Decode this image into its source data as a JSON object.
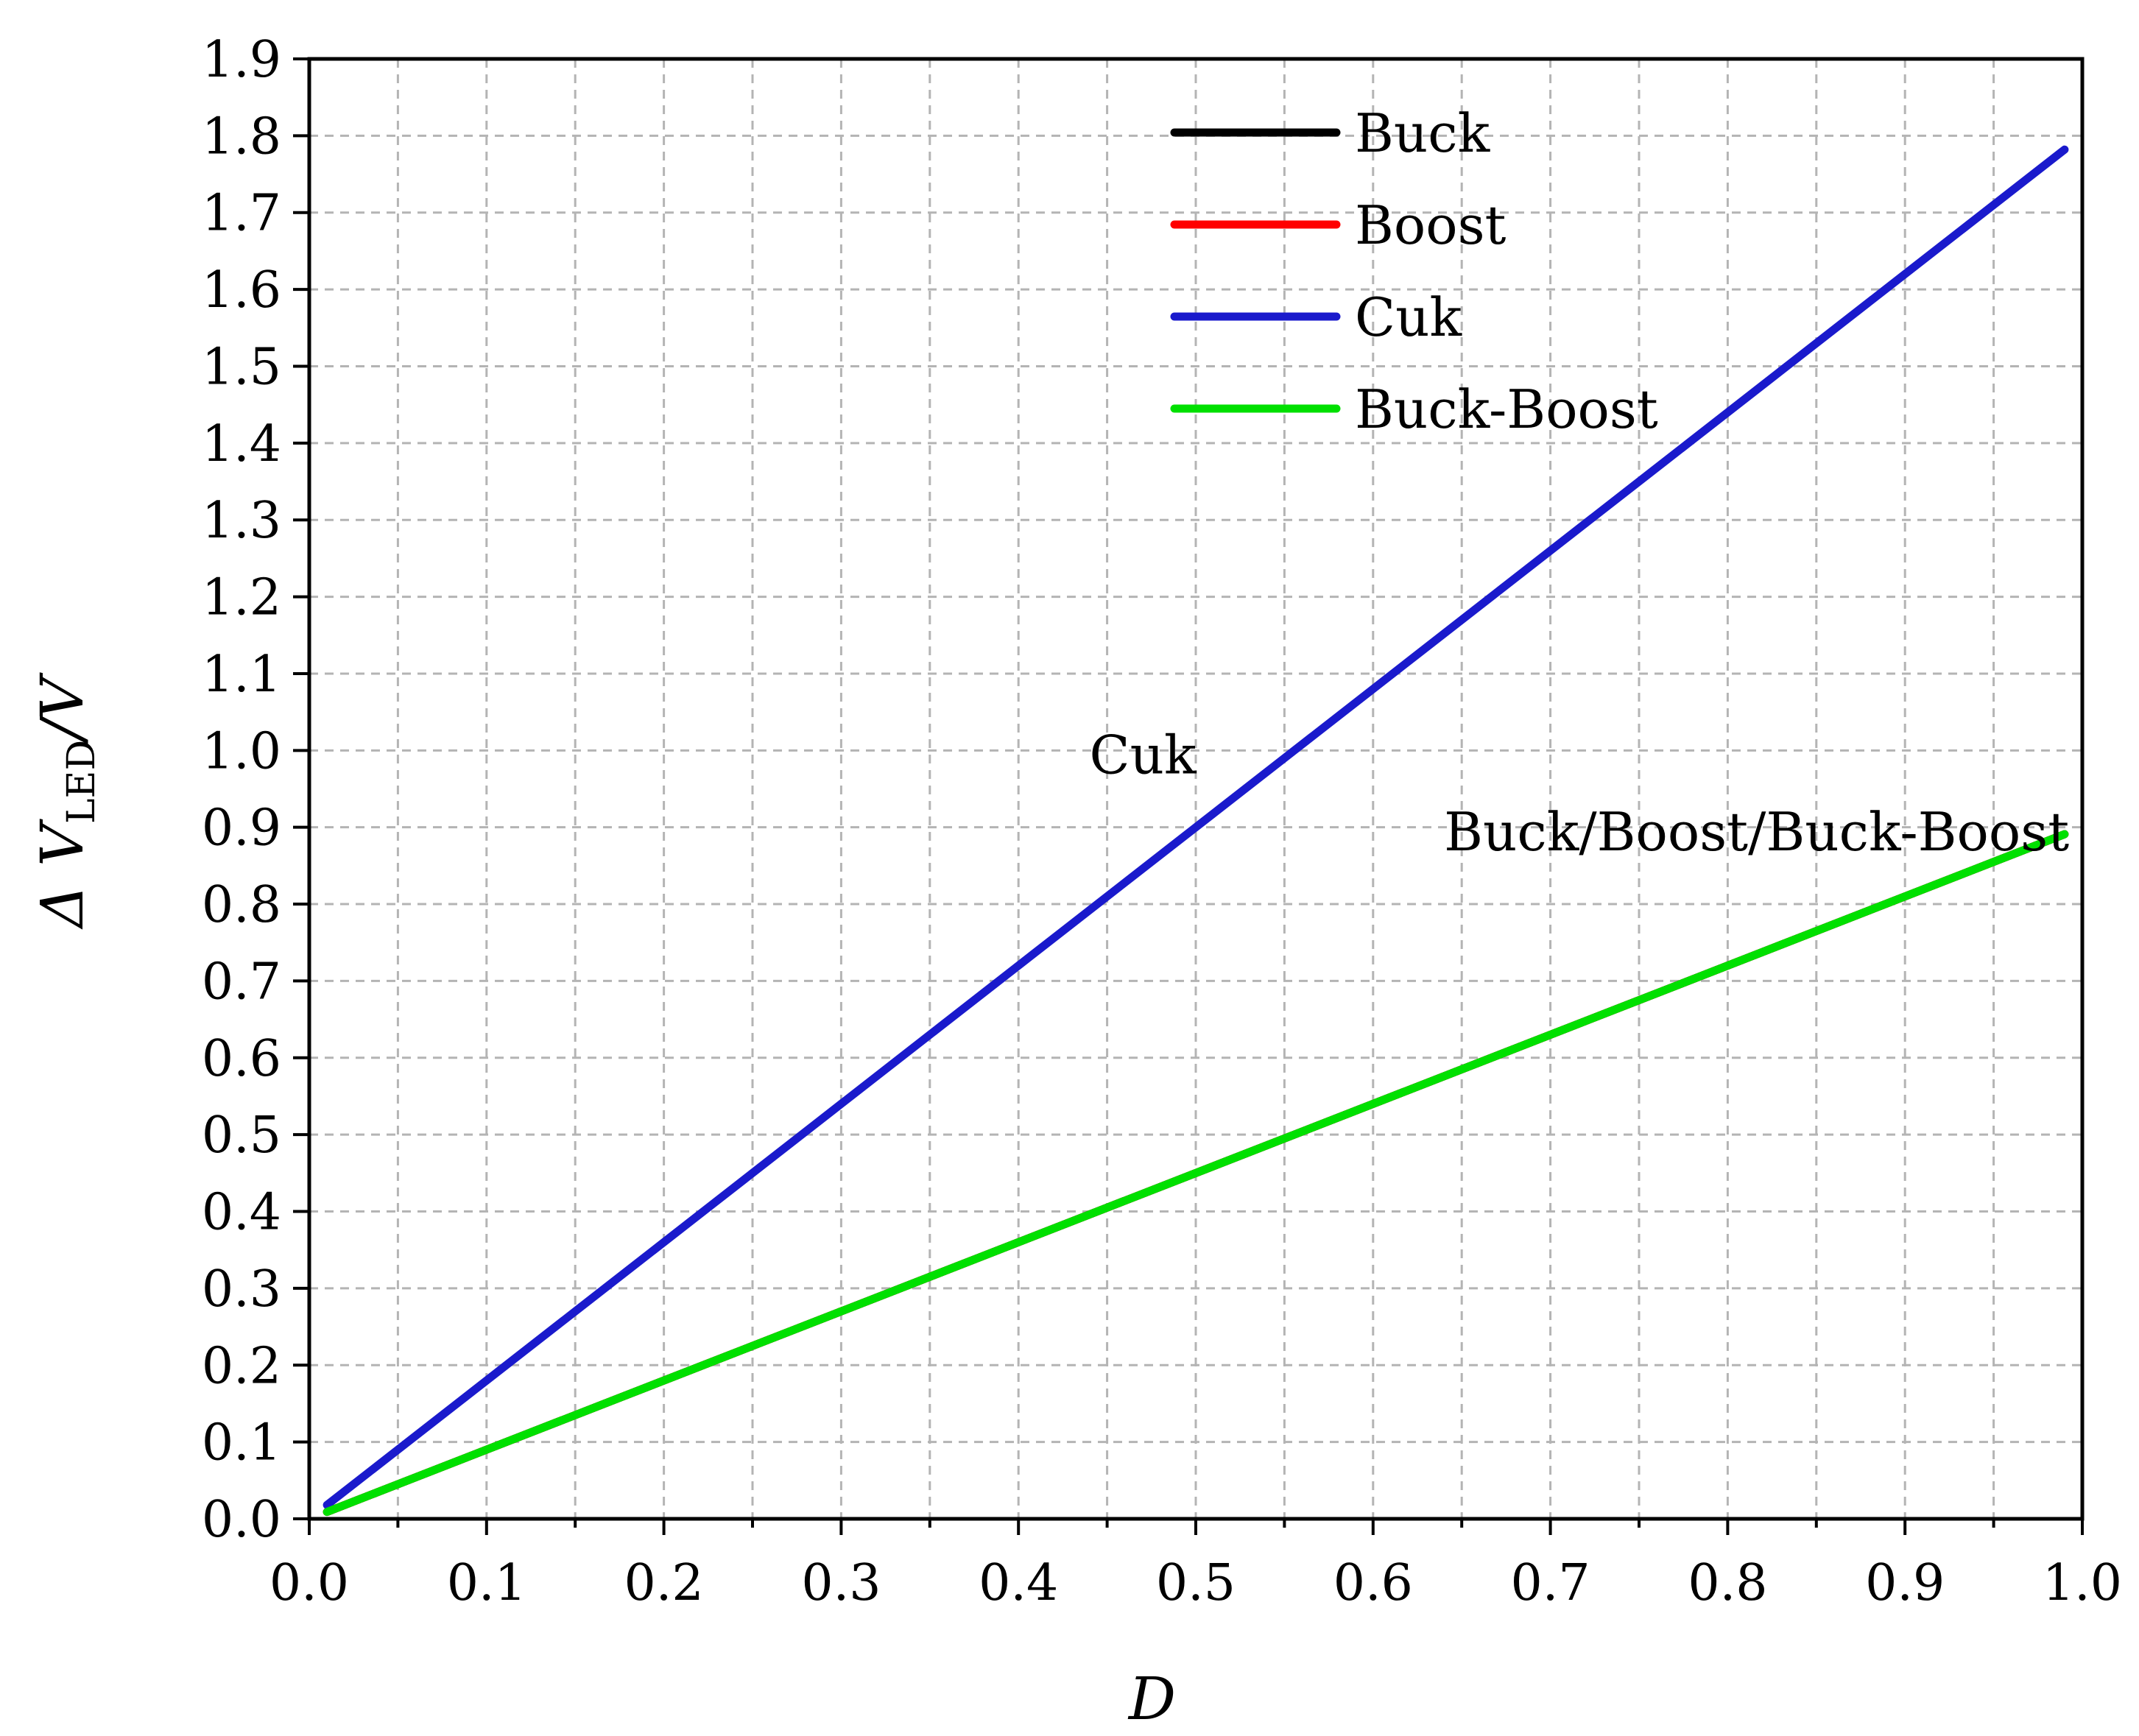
{
  "chart_data": {
    "type": "line",
    "xlabel": "D",
    "ylabel": {
      "prefix": "Δ V",
      "subscript": "LED",
      "suffix": "/V"
    },
    "xlim": [
      0.0,
      1.0
    ],
    "ylim": [
      0.0,
      1.9
    ],
    "x_ticks": [
      "0.0",
      "0.1",
      "0.2",
      "0.3",
      "0.4",
      "0.5",
      "0.6",
      "0.7",
      "0.8",
      "0.9",
      "1.0"
    ],
    "y_ticks": [
      "0.0",
      "0.1",
      "0.2",
      "0.3",
      "0.4",
      "0.5",
      "0.6",
      "0.7",
      "0.8",
      "0.9",
      "1.0",
      "1.1",
      "1.2",
      "1.3",
      "1.4",
      "1.5",
      "1.6",
      "1.7",
      "1.8",
      "1.9"
    ],
    "grid": true,
    "legend_position": "top-center",
    "series": [
      {
        "name": "Buck",
        "color": "#000000",
        "x": [
          0.01,
          0.99
        ],
        "y": [
          0.009,
          0.891
        ]
      },
      {
        "name": "Boost",
        "color": "#ff0000",
        "x": [
          0.01,
          0.99
        ],
        "y": [
          0.009,
          0.891
        ]
      },
      {
        "name": "Cuk",
        "color": "#1a1acc",
        "x": [
          0.01,
          0.99
        ],
        "y": [
          0.018,
          1.782
        ]
      },
      {
        "name": "Buck-Boost",
        "color": "#00e000",
        "x": [
          0.01,
          0.99
        ],
        "y": [
          0.009,
          0.891
        ]
      }
    ],
    "annotations": [
      {
        "text": "Cuk",
        "x": 0.44,
        "y": 0.995
      },
      {
        "text": "Buck/Boost/Buck-Boost",
        "x": 0.64,
        "y": 0.895
      }
    ]
  }
}
